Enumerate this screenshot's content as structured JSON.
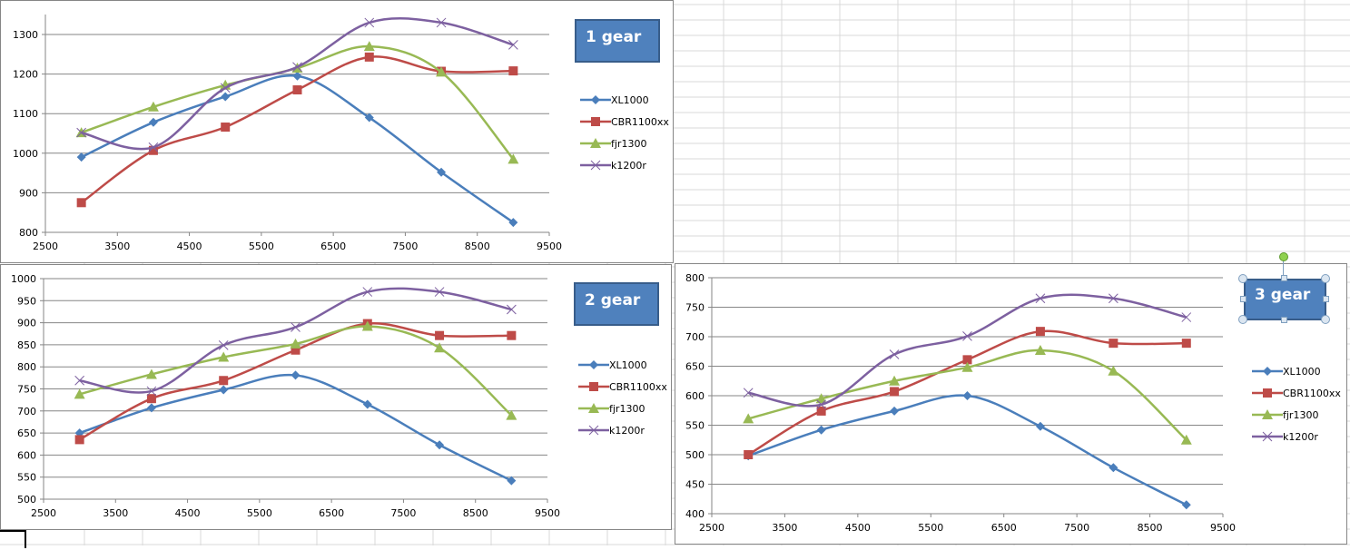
{
  "spreadsheet": {
    "selected_cell": "active-cell"
  },
  "colors": {
    "XL1000": "#4A7EBB",
    "CBR1100xx": "#BE4B48",
    "fjr1300": "#98B954",
    "k1200r": "#7D60A0",
    "title_fill": "#4F81BD",
    "title_border": "#385D8A"
  },
  "chart_data": [
    {
      "type": "line",
      "title": "1 gear",
      "xlabel": "",
      "ylabel": "",
      "x": [
        3000,
        4000,
        5000,
        6000,
        7000,
        8000,
        9000
      ],
      "xlim": [
        2500,
        9500
      ],
      "ylim": [
        800,
        1350
      ],
      "xticks": [
        "2500",
        "3500",
        "4500",
        "5500",
        "6500",
        "7500",
        "8500",
        "9500"
      ],
      "yticks": [
        "800",
        "900",
        "1000",
        "1100",
        "1200",
        "1300"
      ],
      "grid": true,
      "smoothed": true,
      "legend_position": "right",
      "series": [
        {
          "name": "XL1000",
          "marker": "diamond",
          "values": [
            990,
            1078,
            1143,
            1195,
            1090,
            952,
            825
          ]
        },
        {
          "name": "CBR1100xx",
          "marker": "square",
          "values": [
            875,
            1007,
            1066,
            1160,
            1243,
            1207,
            1208
          ]
        },
        {
          "name": "fjr1300",
          "marker": "triangle",
          "values": [
            1052,
            1117,
            1172,
            1215,
            1270,
            1205,
            985
          ]
        },
        {
          "name": "k1200r",
          "marker": "x",
          "values": [
            1052,
            1015,
            1165,
            1218,
            1330,
            1330,
            1274
          ]
        }
      ]
    },
    {
      "type": "line",
      "title": "2 gear",
      "xlabel": "",
      "ylabel": "",
      "x": [
        3000,
        4000,
        5000,
        6000,
        7000,
        8000,
        9000
      ],
      "xlim": [
        2500,
        9500
      ],
      "ylim": [
        500,
        1000
      ],
      "xticks": [
        "2500",
        "3500",
        "4500",
        "5500",
        "6500",
        "7500",
        "8500",
        "9500"
      ],
      "yticks": [
        "500",
        "550",
        "600",
        "650",
        "700",
        "750",
        "800",
        "850",
        "900",
        "950",
        "1000"
      ],
      "grid": true,
      "smoothed": true,
      "legend_position": "right",
      "series": [
        {
          "name": "XL1000",
          "marker": "diamond",
          "values": [
            650,
            707,
            748,
            781,
            715,
            623,
            542
          ]
        },
        {
          "name": "CBR1100xx",
          "marker": "square",
          "values": [
            635,
            728,
            769,
            838,
            898,
            871,
            871
          ]
        },
        {
          "name": "fjr1300",
          "marker": "triangle",
          "values": [
            738,
            783,
            822,
            852,
            892,
            843,
            690
          ]
        },
        {
          "name": "k1200r",
          "marker": "x",
          "values": [
            769,
            745,
            849,
            890,
            970,
            970,
            930
          ]
        }
      ]
    },
    {
      "type": "line",
      "title": "3 gear",
      "xlabel": "",
      "ylabel": "",
      "x": [
        3000,
        4000,
        5000,
        6000,
        7000,
        8000,
        9000
      ],
      "xlim": [
        2500,
        9500
      ],
      "ylim": [
        400,
        800
      ],
      "xticks": [
        "2500",
        "3500",
        "4500",
        "5500",
        "6500",
        "7500",
        "8500",
        "9500"
      ],
      "yticks": [
        "400",
        "450",
        "500",
        "550",
        "600",
        "650",
        "700",
        "750",
        "800"
      ],
      "grid": true,
      "smoothed": true,
      "legend_position": "right",
      "series": [
        {
          "name": "XL1000",
          "marker": "diamond",
          "values": [
            498,
            542,
            574,
            600,
            548,
            478,
            415
          ]
        },
        {
          "name": "CBR1100xx",
          "marker": "square",
          "values": [
            500,
            574,
            607,
            661,
            709,
            689,
            689
          ]
        },
        {
          "name": "fjr1300",
          "marker": "triangle",
          "values": [
            561,
            595,
            625,
            648,
            677,
            642,
            525
          ]
        },
        {
          "name": "k1200r",
          "marker": "x",
          "values": [
            605,
            585,
            670,
            701,
            765,
            765,
            733
          ]
        }
      ]
    }
  ]
}
